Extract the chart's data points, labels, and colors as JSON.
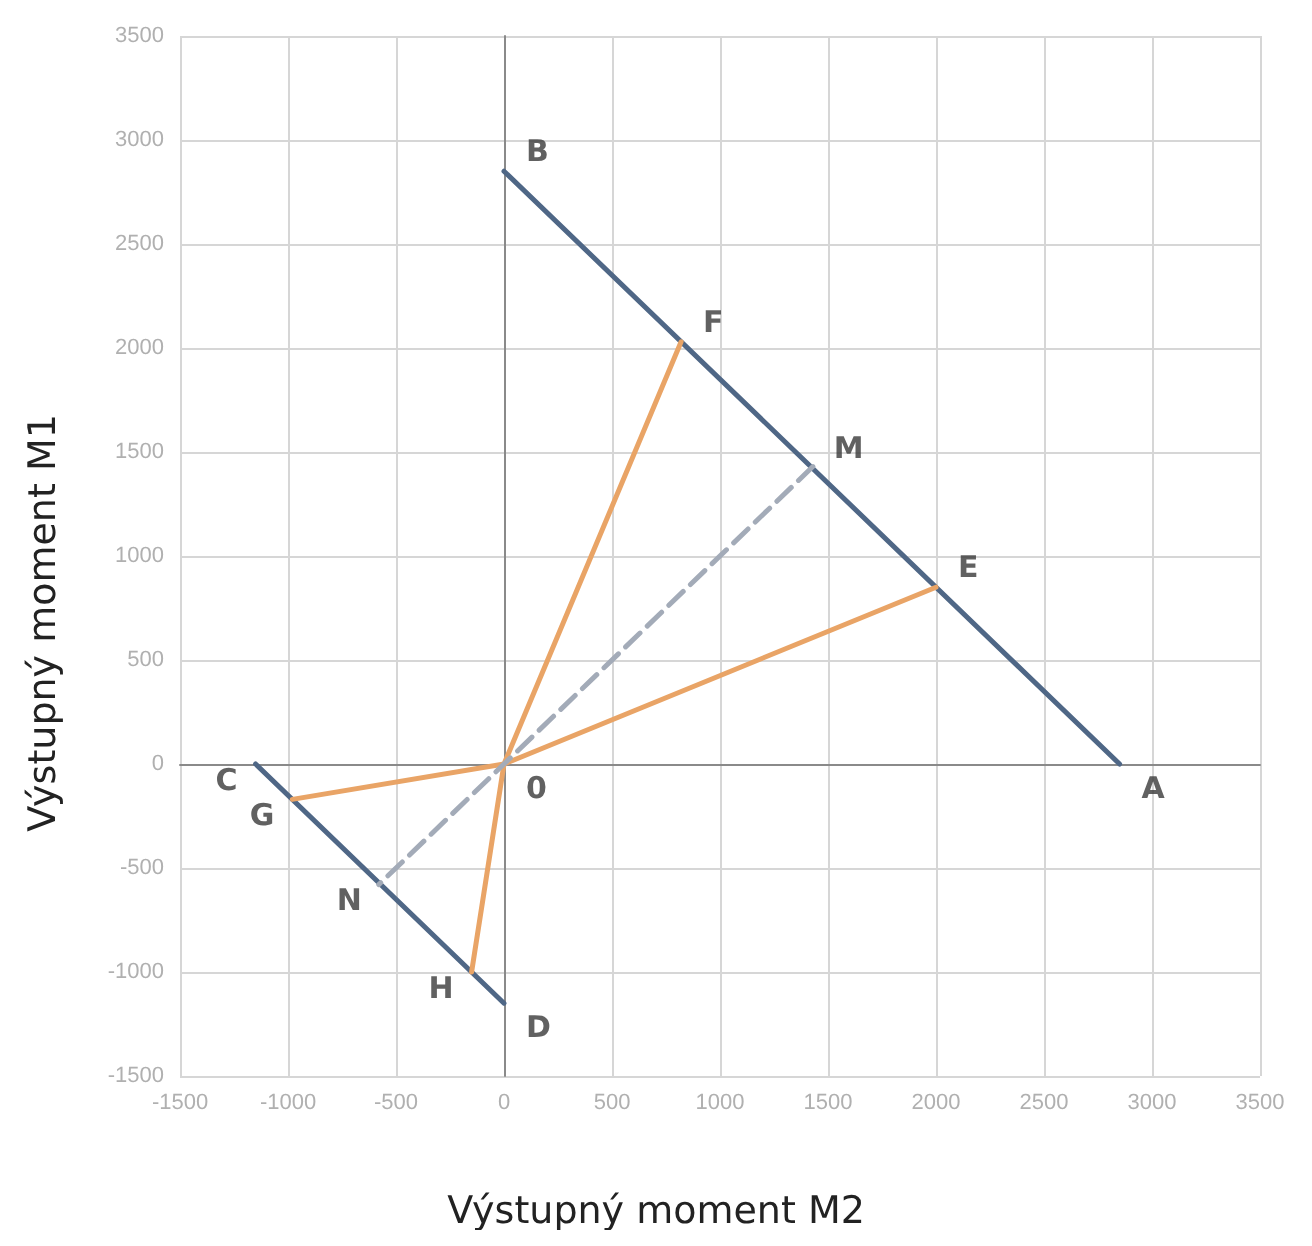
{
  "chart_data": {
    "type": "line",
    "xlabel": "Výstupný moment M2",
    "ylabel": "Výstupný moment M1",
    "xlim": [
      -1500,
      3500
    ],
    "ylim": [
      -1500,
      3500
    ],
    "xticks": [
      -1500,
      -1000,
      -500,
      0,
      500,
      1000,
      1500,
      2000,
      2500,
      3000,
      3500
    ],
    "yticks": [
      -1500,
      -1000,
      -500,
      0,
      500,
      1000,
      1500,
      2000,
      2500,
      3000,
      3500
    ],
    "grid": true,
    "marker": "none",
    "line_style": "solid",
    "series": [
      {
        "color": "#4f6786",
        "x": [
          2850,
          0
        ],
        "values": [
          0,
          2850
        ]
      },
      {
        "color": "#4f6786",
        "x": [
          -1150,
          0
        ],
        "values": [
          0,
          -1150
        ]
      },
      {
        "color": "#e9a466",
        "x": [
          820,
          0,
          2000,
          0,
          -980,
          0,
          -150
        ],
        "values": [
          2030,
          0,
          850,
          0,
          -170,
          0,
          -1000
        ]
      },
      {
        "color": "#a3abb8",
        "x": [
          1430,
          0,
          -580
        ],
        "values": [
          1430,
          0,
          -580
        ],
        "line_style": "dashed"
      }
    ],
    "annotations": [
      {
        "text": "A",
        "x": 2850,
        "y": 0
      },
      {
        "text": "B",
        "x": 0,
        "y": 2850
      },
      {
        "text": "C",
        "x": -1150,
        "y": 0
      },
      {
        "text": "D",
        "x": 0,
        "y": -1150
      },
      {
        "text": "E",
        "x": 2000,
        "y": 850
      },
      {
        "text": "F",
        "x": 820,
        "y": 2030
      },
      {
        "text": "G",
        "x": -980,
        "y": -170
      },
      {
        "text": "H",
        "x": -150,
        "y": -1000
      },
      {
        "text": "M",
        "x": 1425,
        "y": 1425
      },
      {
        "text": "N",
        "x": -575,
        "y": -575
      },
      {
        "text": "0",
        "x": 0,
        "y": 0
      }
    ]
  }
}
